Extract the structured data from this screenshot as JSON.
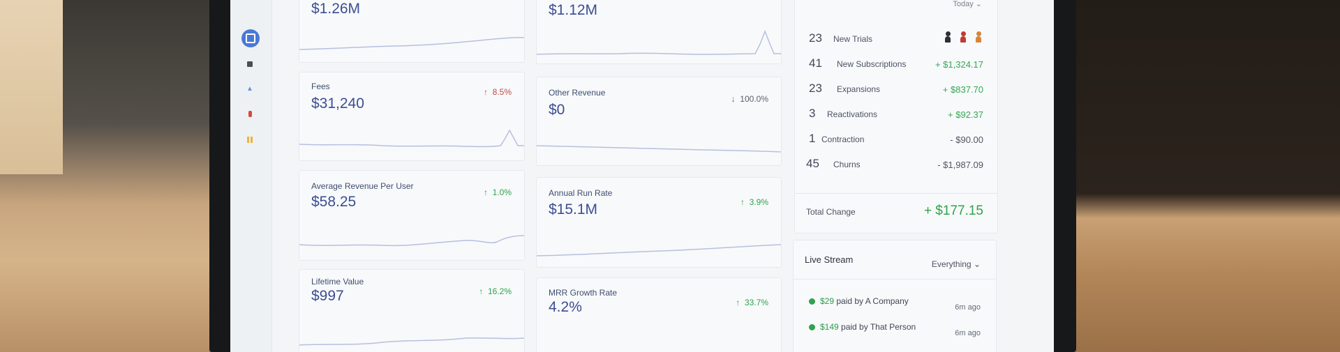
{
  "metrics": [
    {
      "title": "",
      "value": "$1.26M",
      "change": ""
    },
    {
      "title": "",
      "value": "$1.12M",
      "change": ""
    },
    {
      "title": "Fees",
      "value": "$31,240",
      "change": "8.5%",
      "direction": "up",
      "tone": "warn"
    },
    {
      "title": "Other Revenue",
      "value": "$0",
      "change": "100.0%",
      "direction": "down",
      "tone": "neutral"
    },
    {
      "title": "Average Revenue Per User",
      "value": "$58.25",
      "change": "1.0%",
      "direction": "up",
      "tone": "good"
    },
    {
      "title": "Annual Run Rate",
      "value": "$15.1M",
      "change": "3.9%",
      "direction": "up",
      "tone": "good"
    },
    {
      "title": "Lifetime Value",
      "value": "$997",
      "change": "16.2%",
      "direction": "up",
      "tone": "good"
    },
    {
      "title": "MRR Growth Rate",
      "value": "4.2%",
      "change": "33.7%",
      "direction": "up",
      "tone": "good"
    }
  ],
  "breakdown": {
    "filter": "Today",
    "rows": [
      {
        "count": "23",
        "label": "New Trials",
        "amount": ""
      },
      {
        "count": "41",
        "label": "New Subscriptions",
        "amount": "+ $1,324.17"
      },
      {
        "count": "23",
        "label": "Expansions",
        "amount": "+ $837.70"
      },
      {
        "count": "3",
        "label": "Reactivations",
        "amount": "+ $92.37"
      },
      {
        "count": "1",
        "label": "Contraction",
        "amount": "- $90.00"
      },
      {
        "count": "45",
        "label": "Churns",
        "amount": "- $1,987.09"
      }
    ],
    "total_label": "Total Change",
    "total_value": "+ $177.15"
  },
  "live_stream": {
    "title": "Live Stream",
    "filter": "Everything",
    "events": [
      {
        "amount": "$29",
        "text": " paid by A Company",
        "time": "6m ago"
      },
      {
        "amount": "$149",
        "text": " paid by That Person",
        "time": "6m ago"
      }
    ]
  },
  "colors": {
    "accent": "#4a79d6",
    "positive": "#2fa34b",
    "negative": "#c24a45",
    "value": "#3c4e92"
  },
  "icons": {
    "up": "↑",
    "down": "↓",
    "chevron": "⌄"
  }
}
